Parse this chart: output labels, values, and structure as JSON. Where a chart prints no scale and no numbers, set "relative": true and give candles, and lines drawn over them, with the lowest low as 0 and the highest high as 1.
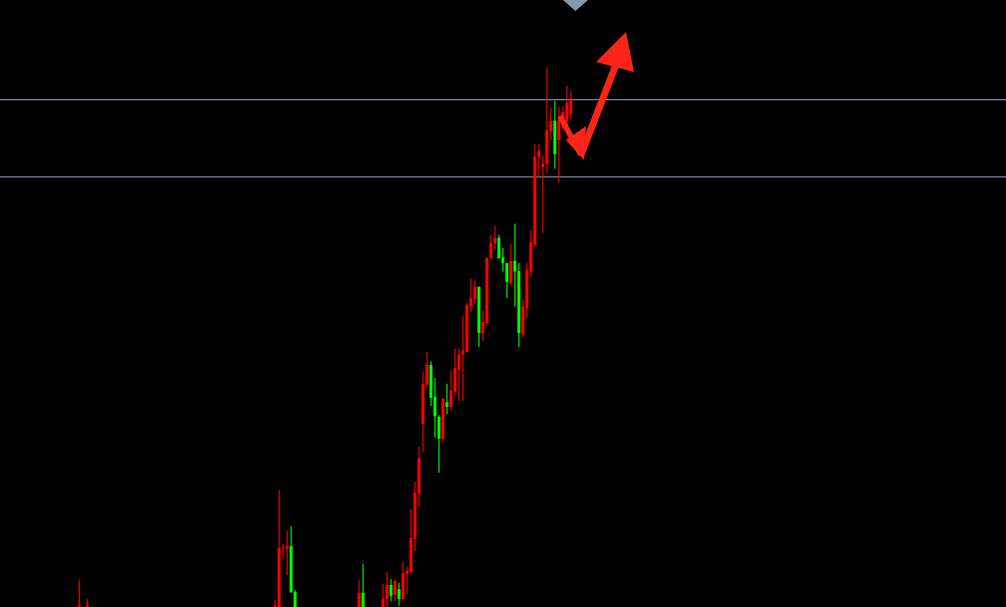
{
  "chart_data": {
    "type": "candlestick",
    "relative": true,
    "categories": [
      null,
      null,
      null,
      null,
      null,
      null,
      null,
      null,
      null,
      null,
      null,
      null,
      null,
      null,
      null,
      null,
      null,
      null,
      null,
      null,
      null,
      null,
      null,
      null,
      null,
      null,
      null,
      null,
      null,
      null,
      null,
      null,
      null,
      null,
      null,
      null,
      null,
      null,
      null,
      null,
      null,
      null,
      null,
      null,
      null,
      null,
      null,
      null,
      null,
      null,
      null,
      null,
      null,
      null,
      null,
      null,
      null,
      null,
      null,
      null,
      null,
      null,
      null,
      null,
      null,
      null,
      null,
      null,
      null,
      null,
      null,
      null,
      null,
      null,
      null,
      null,
      null,
      null,
      null,
      null,
      null,
      null,
      null,
      null,
      null,
      null,
      null,
      null,
      null,
      null,
      null,
      null,
      null,
      null,
      null,
      null,
      null,
      null,
      null,
      null,
      null,
      null,
      null,
      null,
      null,
      null,
      null,
      null,
      null,
      null,
      null,
      null,
      null,
      null,
      null,
      null,
      null,
      null,
      null,
      null,
      null,
      null,
      null,
      null
    ],
    "ohlc": [
      [
        0,
        0.05,
        0,
        0
      ],
      null,
      [
        0,
        0.015,
        0,
        0
      ],
      null,
      null,
      null,
      null,
      null,
      null,
      null,
      null,
      null,
      null,
      null,
      null,
      null,
      null,
      null,
      null,
      null,
      null,
      null,
      null,
      null,
      null,
      null,
      null,
      null,
      null,
      null,
      null,
      null,
      null,
      null,
      null,
      null,
      null,
      null,
      null,
      null,
      null,
      null,
      null,
      null,
      null,
      null,
      null,
      null,
      null,
      [
        0,
        0.013,
        0,
        0
      ],
      [
        0,
        0.217,
        0,
        0.109
      ],
      [
        0.108,
        0.117,
        0.09,
        0.11
      ],
      [
        0.108,
        0.141,
        0.059,
        0.113
      ],
      [
        0.113,
        0.15,
        0.027,
        0.027
      ],
      [
        0.028,
        0.032,
        0,
        0
      ],
      null,
      null,
      null,
      null,
      null,
      null,
      null,
      null,
      null,
      null,
      null,
      null,
      null,
      null,
      null,
      [
        0,
        0.05,
        0,
        0.026
      ],
      [
        0.026,
        0.08,
        0,
        0
      ],
      null,
      null,
      null,
      null,
      [
        0,
        0.043,
        0,
        0.015
      ],
      [
        0.015,
        0.065,
        0,
        0.041
      ],
      [
        0.041,
        0.052,
        0.01,
        0.021
      ],
      [
        0.022,
        0.052,
        0.011,
        0.048
      ],
      [
        0.033,
        0.045,
        0.002,
        0.015
      ],
      [
        0.015,
        0.083,
        0.013,
        0.063
      ],
      [
        0.061,
        0.074,
        0.024,
        0.067
      ],
      [
        0.065,
        0.182,
        0.061,
        0.128
      ],
      [
        0.126,
        0.232,
        0.104,
        0.212
      ],
      [
        0.21,
        0.297,
        0.186,
        0.276
      ],
      [
        0.34,
        0.436,
        0.288,
        0.414
      ],
      [
        0.412,
        0.473,
        0.406,
        0.449
      ],
      [
        0.449,
        0.456,
        0.373,
        0.388
      ],
      [
        0.39,
        0.425,
        0.314,
        0.354
      ],
      [
        0.353,
        0.356,
        0.249,
        0.312
      ],
      [
        0.312,
        0.388,
        0.306,
        0.386
      ],
      [
        0.38,
        0.414,
        0.358,
        0.371
      ],
      [
        0.371,
        0.438,
        0.364,
        0.401
      ],
      [
        0.399,
        0.479,
        0.391,
        0.443
      ],
      [
        0.44,
        0.479,
        0.382,
        0.469
      ],
      [
        0.468,
        0.54,
        0.382,
        0.475
      ],
      [
        0.473,
        0.564,
        0.473,
        0.56
      ],
      [
        0.558,
        0.609,
        0.547,
        0.573
      ],
      [
        0.571,
        0.605,
        0.562,
        0.594
      ],
      [
        0.594,
        0.594,
        0.482,
        0.508
      ],
      [
        0.508,
        0.551,
        0.494,
        0.529
      ],
      [
        0.527,
        0.649,
        0.521,
        0.647
      ],
      [
        0.647,
        0.69,
        0.644,
        0.675
      ],
      [
        0.675,
        0.707,
        0.662,
        0.685
      ],
      [
        0.685,
        0.69,
        0.646,
        0.647
      ],
      [
        0.649,
        0.666,
        0.622,
        0.638
      ],
      [
        0.638,
        0.638,
        0.573,
        0.603
      ],
      [
        0.601,
        0.673,
        0.596,
        0.642
      ],
      [
        0.642,
        0.711,
        0.557,
        0.622
      ],
      [
        0.623,
        0.638,
        0.482,
        0.508
      ],
      [
        0.506,
        0.571,
        0.501,
        0.557
      ],
      [
        0.555,
        0.638,
        0.536,
        0.625
      ],
      [
        0.622,
        0.699,
        0.612,
        0.677
      ],
      [
        0.672,
        0.859,
        0.668,
        0.835
      ],
      [
        0.835,
        0.859,
        0.798,
        0.846
      ],
      [
        0.816,
        0.837,
        0.694,
        0.822
      ],
      [
        0.822,
        1.0,
        0.805,
        0.885
      ],
      [
        0.883,
        0.926,
        0.866,
        0.902
      ],
      [
        0.902,
        0.939,
        0.813,
        0.84
      ],
      [
        0.866,
        0.928,
        0.787,
        0.904
      ],
      [
        0.894,
        0.929,
        0.885,
        0.918
      ],
      [
        0.9,
        0.967,
        0.88,
        0.935
      ],
      [
        0.915,
        0.955,
        0.904,
        0.941
      ]
    ],
    "colors": [
      "#ff0000",
      null,
      "#ff0000",
      null,
      null,
      null,
      null,
      null,
      null,
      null,
      null,
      null,
      null,
      null,
      null,
      null,
      null,
      null,
      null,
      null,
      null,
      null,
      null,
      null,
      null,
      null,
      null,
      null,
      null,
      null,
      null,
      null,
      null,
      null,
      null,
      null,
      null,
      null,
      null,
      null,
      null,
      null,
      null,
      null,
      null,
      null,
      null,
      null,
      null,
      "#ff0000",
      "#ff0000",
      "#ff0000",
      "#ff0000",
      "#00ff00",
      "#00ff00",
      null,
      null,
      null,
      null,
      null,
      null,
      null,
      null,
      null,
      null,
      null,
      null,
      null,
      null,
      null,
      "#ff0000",
      "#00ff00",
      null,
      null,
      null,
      null,
      "#ff0000",
      "#ff0000",
      "#00ff00",
      "#ff0000",
      "#00ff00",
      "#ff0000",
      "#ff0000",
      "#ff0000",
      "#ff0000",
      "#ff0000",
      "#ff0000",
      "#ff0000",
      "#00ff00",
      "#00ff00",
      "#00ff00",
      "#ff0000",
      "#00ff00",
      "#ff0000",
      "#ff0000",
      "#ff0000",
      "#ff0000",
      "#ff0000",
      "#ff0000",
      "#ff0000",
      "#00ff00",
      "#ff0000",
      "#ff0000",
      "#ff0000",
      "#ff0000",
      "#00ff00",
      "#00ff00",
      "#00ff00",
      "#ff0000",
      "#00ff00",
      "#00ff00",
      "#ff0000",
      "#ff0000",
      "#ff0000",
      "#ff0000",
      "#ff0000",
      "#ff0000",
      "#ff0000",
      "#ff0000",
      "#00ff00",
      "#ff0000",
      "#ff0000",
      "#ff0000",
      "#ff0000"
    ],
    "ref_lines": [
      {
        "axis": "y",
        "value": 0.941,
        "color": "#7d889c"
      },
      {
        "axis": "y",
        "value": 0.798,
        "color": "#7d889c"
      }
    ]
  }
}
